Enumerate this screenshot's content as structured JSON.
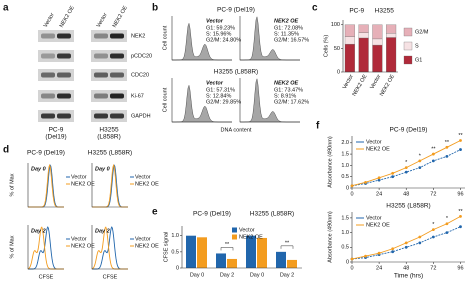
{
  "panels": {
    "a": {
      "label": "a",
      "lanes": [
        "Vector",
        "NEK2 OE",
        "Vector",
        "NEK2 OE"
      ],
      "proteins": [
        "NEK2",
        "pCDC20",
        "CDC20",
        "Ki-67",
        "GAPDH"
      ],
      "cell_lines": [
        [
          "PC-9",
          "(Del19)"
        ],
        [
          "H3255",
          "(L858R)"
        ]
      ]
    },
    "b": {
      "label": "b",
      "titles": [
        "PC-9 (Del19)",
        "H3255 (L858R)"
      ],
      "conditions": [
        "Vector",
        "NEK2 OE"
      ],
      "stats": [
        [
          "G1: 59.23%",
          "S: 15.96%",
          "G2/M: 24.80%"
        ],
        [
          "G1: 72.08%",
          "S: 11.35%",
          "G2/M: 16.57%"
        ],
        [
          "G1: 57.31%",
          "S: 12.84%",
          "G2/M: 29.85%"
        ],
        [
          "G1: 73.47%",
          "S: 8.91%",
          "G2/M: 17.62%"
        ]
      ],
      "ylabel": "Cell count",
      "xlabel": "DNA content"
    },
    "d": {
      "label": "d",
      "titles": [
        "PC-9 (Del19)",
        "H3255 (L858R)"
      ],
      "days": [
        "Day 0",
        "Day 2"
      ],
      "ylabel": "% of Max",
      "xlabel": "CFSE",
      "legend": [
        "Vector",
        "NEK2 OE"
      ],
      "colors": [
        "#2166ac",
        "#f39c1f"
      ]
    }
  },
  "chart_data": [
    {
      "panel": "c",
      "type": "stacked_bar",
      "groups": [
        "PC-9",
        "H3255"
      ],
      "categories": [
        "Vector",
        "NEK2 OE",
        "Vector",
        "NEK2 OE"
      ],
      "ylabel": "Cells (%)",
      "ylim": [
        0,
        110
      ],
      "yticks": [
        0,
        50,
        100
      ],
      "series": [
        {
          "name": "G1",
          "color": "#b02a3a",
          "values": [
            59,
            72,
            57,
            73
          ]
        },
        {
          "name": "S",
          "color": "#f6e2e4",
          "values": [
            16,
            11,
            13,
            9
          ]
        },
        {
          "name": "G2/M",
          "color": "#e6b0b8",
          "values": [
            25,
            17,
            30,
            18
          ]
        }
      ]
    },
    {
      "panel": "e",
      "type": "grouped_bar",
      "groups": [
        "PC-9 (Del19)",
        "H3255 (L858R)"
      ],
      "categories": [
        "Day 0",
        "Day 2",
        "Day 0",
        "Day 2"
      ],
      "ylabel": "CFSE signal",
      "ylim": [
        0,
        1.3
      ],
      "yticks": [
        0,
        0.5,
        {
          "value": 1,
          "label": "1.0"
        }
      ],
      "significance": [
        null,
        "**",
        null,
        "**"
      ],
      "series": [
        {
          "name": "Vector",
          "color": "#2166ac",
          "values": [
            1.0,
            0.45,
            1.0,
            0.5
          ]
        },
        {
          "name": "NEK2 OE",
          "color": "#f39c1f",
          "values": [
            0.95,
            0.28,
            0.93,
            0.25
          ]
        }
      ]
    },
    {
      "panel": "f",
      "type": "line",
      "title": "PC-9 (Del19)",
      "ylabel": "Absorbance (490nm)",
      "x": [
        0,
        12,
        24,
        36,
        48,
        60,
        72,
        84,
        96
      ],
      "xlim": [
        0,
        100
      ],
      "xticks": [
        0,
        24,
        48,
        72,
        96
      ],
      "ylim": [
        0,
        2.3
      ],
      "yticks": [
        0,
        0.5,
        {
          "value": 1,
          "label": "1.0"
        },
        1.5,
        {
          "value": 2,
          "label": "2.0"
        }
      ],
      "significance": [
        null,
        null,
        null,
        null,
        "*",
        "*",
        "**",
        "**",
        "**"
      ],
      "series": [
        {
          "name": "Vector",
          "color": "#2166ac",
          "values": [
            0.1,
            0.2,
            0.35,
            0.5,
            0.7,
            0.9,
            1.2,
            1.4,
            1.7
          ]
        },
        {
          "name": "NEK2 OE",
          "color": "#f39c1f",
          "values": [
            0.1,
            0.25,
            0.45,
            0.65,
            0.9,
            1.2,
            1.5,
            1.8,
            2.1
          ]
        }
      ]
    },
    {
      "type": "line",
      "title": "H3255 (L858R)",
      "ylabel": "Absorbance (490nm)",
      "xlabel": "Time (hrs)",
      "x": [
        0,
        12,
        24,
        36,
        48,
        60,
        72,
        84,
        96
      ],
      "xlim": [
        0,
        100
      ],
      "xticks": [
        0,
        24,
        48,
        72,
        96
      ],
      "ylim": [
        0,
        1.7
      ],
      "yticks": [
        0,
        0.5,
        {
          "value": 1,
          "label": "1.0"
        },
        1.5
      ],
      "significance": [
        null,
        null,
        null,
        null,
        null,
        null,
        "*",
        "*",
        "**"
      ],
      "series": [
        {
          "name": "Vector",
          "color": "#2166ac",
          "values": [
            0.1,
            0.15,
            0.25,
            0.35,
            0.5,
            0.65,
            0.85,
            1.0,
            1.2
          ]
        },
        {
          "name": "NEK2 OE",
          "color": "#f39c1f",
          "values": [
            0.1,
            0.2,
            0.3,
            0.45,
            0.65,
            0.85,
            1.1,
            1.3,
            1.55
          ]
        }
      ]
    }
  ]
}
